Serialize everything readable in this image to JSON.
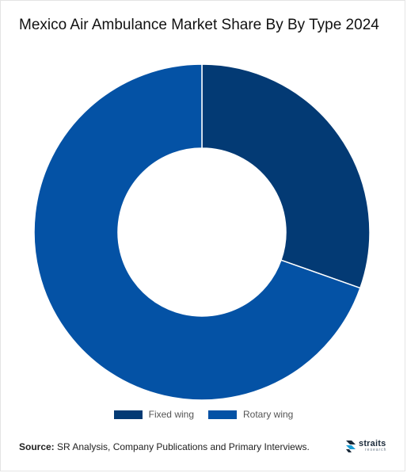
{
  "page": {
    "title": "Mexico Air Ambulance Market Share By By Type 2024",
    "source_label": "Source:",
    "source_text": " SR Analysis, Company Publications and Primary Interviews.",
    "logo_text": "straits",
    "logo_subtext": "research",
    "logo_icon": "straits-research-logo-icon"
  },
  "chart_data": {
    "type": "pie",
    "subtype": "donut",
    "title": "Mexico Air Ambulance Market Share By By Type 2024",
    "categories": [
      "Fixed wing",
      "Rotary wing"
    ],
    "values": [
      30.4,
      69.6
    ],
    "unit": "%",
    "colors": [
      "#033a74",
      "#0452a5"
    ],
    "legend_position": "bottom",
    "data_labels": false
  }
}
